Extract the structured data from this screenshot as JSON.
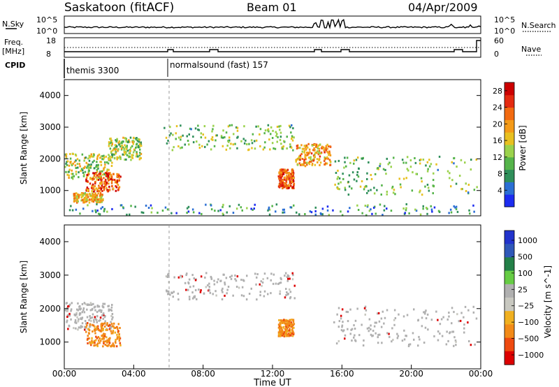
{
  "header": {
    "station": "Saskatoon (fitACF)",
    "beam": "Beam 01",
    "date": "04/Apr/2009"
  },
  "sky_panel": {
    "left_label": "N.Sky",
    "left_ticks": [
      "10^5",
      "10^0"
    ],
    "right_ticks": [
      "10^5",
      "10^0"
    ],
    "right_label": "N.Search"
  },
  "freq_panel": {
    "left_label_1": "Freq.",
    "left_label_2": "[MHz]",
    "left_ticks": [
      "18",
      "8"
    ],
    "right_ticks": [
      "60",
      "0"
    ],
    "right_label": "Nave"
  },
  "cpid": {
    "label": "CPID",
    "segments": [
      "themis 3300",
      "normalsound (fast) 157"
    ]
  },
  "colors": {
    "power": [
      "#1c2cf0",
      "#2b6fd4",
      "#2f8f5a",
      "#55b44a",
      "#9bd24c",
      "#e8c020",
      "#f49a18",
      "#f26a10",
      "#e42a10",
      "#cc0000"
    ],
    "velocity": [
      "#2233cc",
      "#2f58b8",
      "#238048",
      "#66cc44",
      "#b0b0b0",
      "#c8c8c0",
      "#f0b020",
      "#f28a18",
      "#ee4a10",
      "#dd0000"
    ]
  },
  "chart_data": [
    {
      "type": "heatmap",
      "name": "power",
      "ylabel": "Slant Range [km]",
      "y_ticks": [
        "1000",
        "2000",
        "3000",
        "4000"
      ],
      "ylim": [
        200,
        4500
      ],
      "colorbar_label": "Power [dB]",
      "colorbar_ticks": [
        "4",
        "8",
        "12",
        "16",
        "20",
        "24",
        "28"
      ],
      "colorbar_range": [
        0,
        30
      ],
      "echo_regions": [
        {
          "t": [
            0.0,
            2.8
          ],
          "r": [
            1400,
            2200
          ],
          "v": 12
        },
        {
          "t": [
            1.2,
            3.2
          ],
          "r": [
            1000,
            1600
          ],
          "v": 22
        },
        {
          "t": [
            0.5,
            2.2
          ],
          "r": [
            650,
            950
          ],
          "v": 16
        },
        {
          "t": [
            2.5,
            4.4
          ],
          "r": [
            2000,
            2700
          ],
          "v": 12
        },
        {
          "t": [
            5.7,
            13.3
          ],
          "r": [
            2300,
            3100
          ],
          "v": 10
        },
        {
          "t": [
            12.3,
            13.2
          ],
          "r": [
            1100,
            1700
          ],
          "v": 22
        },
        {
          "t": [
            13.3,
            15.3
          ],
          "r": [
            1800,
            2500
          ],
          "v": 18
        },
        {
          "t": [
            15.5,
            23.8
          ],
          "r": [
            900,
            2100
          ],
          "v": 10
        },
        {
          "t": [
            0.2,
            23.9
          ],
          "r": [
            250,
            600
          ],
          "v": 6
        }
      ]
    },
    {
      "type": "heatmap",
      "name": "velocity",
      "ylabel": "Slant Range [km]",
      "y_ticks": [
        "1000",
        "2000",
        "3000",
        "4000"
      ],
      "ylim": [
        200,
        4500
      ],
      "colorbar_label": "Velocity [m s^-1]",
      "colorbar_ticks": [
        "1000",
        "500",
        "100",
        "25",
        "−25",
        "−100",
        "−500",
        "−1000"
      ],
      "echo_regions": [
        {
          "t": [
            0.0,
            2.8
          ],
          "r": [
            1400,
            2200
          ],
          "v": 0
        },
        {
          "t": [
            1.2,
            3.2
          ],
          "r": [
            900,
            1600
          ],
          "v": -300
        },
        {
          "t": [
            5.7,
            13.3
          ],
          "r": [
            2300,
            3100
          ],
          "v": 0
        },
        {
          "t": [
            12.3,
            13.2
          ],
          "r": [
            1200,
            1700
          ],
          "v": -200
        },
        {
          "t": [
            15.5,
            23.8
          ],
          "r": [
            900,
            2100
          ],
          "v": 0
        }
      ]
    }
  ],
  "time_axis": {
    "ticks": [
      "00:00",
      "04:00",
      "08:00",
      "12:00",
      "16:00",
      "20:00",
      "00:00"
    ],
    "xlabel": "Time UT"
  }
}
